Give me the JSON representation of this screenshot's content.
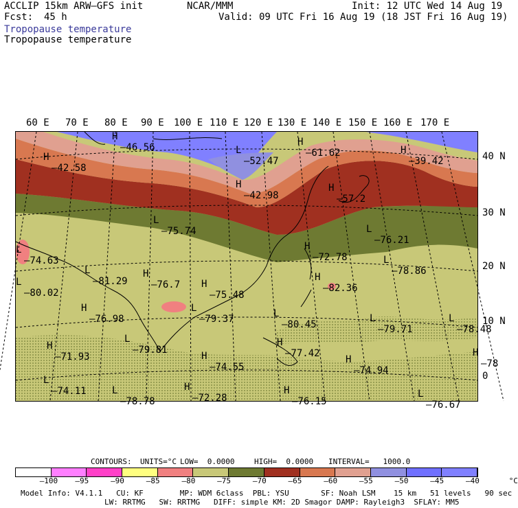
{
  "header": {
    "model": "ACCLIP 15km ARW–GFS init",
    "org": "NCAR/MMM",
    "init": "Init: 12 UTC Wed 14 Aug 19",
    "fcst_label": "Fcst:",
    "fcst_value": "45 h",
    "valid": "Valid: 09 UTC Fri 16 Aug 19 (18 JST Fri 16 Aug 19)",
    "field_title_1": "Tropopause temperature",
    "field_title_2": "Tropopause temperature",
    "title_color_1": "#3a3a9a"
  },
  "axes": {
    "lon_labels": [
      "60 E",
      "70 E",
      "80 E",
      "90 E",
      "100 E",
      "110 E",
      "120 E",
      "130 E",
      "140 E",
      "150 E",
      "160 E",
      "170 E"
    ],
    "lat_labels": [
      "40 N",
      "30 N",
      "20 N",
      "10 N",
      "0"
    ]
  },
  "map": {
    "lows": [
      {
        "mark": "L",
        "value": "–75.74"
      },
      {
        "mark": "L",
        "value": "–74.63"
      },
      {
        "mark": "L",
        "value": "–80.02"
      },
      {
        "mark": "L",
        "value": "–81.29"
      },
      {
        "mark": "L",
        "value": "–79.81"
      },
      {
        "mark": "L",
        "value": "–79.37"
      },
      {
        "mark": "L",
        "value": "–76.21"
      },
      {
        "mark": "L",
        "value": "–78.86"
      },
      {
        "mark": "L",
        "value": "–79.71"
      },
      {
        "mark": "L",
        "value": "–78.48"
      },
      {
        "mark": "L",
        "value": "–74.11"
      },
      {
        "mark": "L",
        "value": "–78.78"
      },
      {
        "mark": "L",
        "value": "–76.67"
      },
      {
        "mark": "L",
        "value": "–52.47"
      },
      {
        "mark": "L",
        "value": "–80.45"
      }
    ],
    "highs": [
      {
        "mark": "H",
        "value": "–46.56"
      },
      {
        "mark": "H",
        "value": "–42.58"
      },
      {
        "mark": "H",
        "value": "–42.98"
      },
      {
        "mark": "H",
        "value": "–61.62"
      },
      {
        "mark": "H",
        "value": "–39.42"
      },
      {
        "mark": "H",
        "value": "–57.2"
      },
      {
        "mark": "H",
        "value": "–72.78"
      },
      {
        "mark": "H",
        "value": "–82.36"
      },
      {
        "mark": "H",
        "value": "–76.7"
      },
      {
        "mark": "H",
        "value": "–75.48"
      },
      {
        "mark": "H",
        "value": "–76.98"
      },
      {
        "mark": "H",
        "value": "–71.93"
      },
      {
        "mark": "H",
        "value": "–74.55"
      },
      {
        "mark": "H",
        "value": "–77.42"
      },
      {
        "mark": "H",
        "value": "–74.94"
      },
      {
        "mark": "H",
        "value": "–78"
      },
      {
        "mark": "H",
        "value": "–72.28"
      },
      {
        "mark": "H",
        "value": "–76.15"
      }
    ]
  },
  "contours": {
    "label": "CONTOURS:",
    "units": "UNITS=°C",
    "low": "LOW=  0.0000",
    "high": "HIGH=  0.0000",
    "interval": "INTERVAL=   1000.0"
  },
  "colorbar": {
    "ticks": [
      "–100",
      "–95",
      "–90",
      "–85",
      "–80",
      "–75",
      "–70",
      "–65",
      "–60",
      "–55",
      "–50",
      "–45",
      "–40",
      "°C"
    ],
    "colors": [
      "#ffffff",
      "#ff7fff",
      "#ff40c8",
      "#ffff80",
      "#f08080",
      "#c8c878",
      "#6e7a32",
      "#a03020",
      "#d87850",
      "#e0a090",
      "#9090e0",
      "#7070ff",
      "#8080ff"
    ]
  },
  "footer": {
    "line1": "Model Info: V4.1.1   CU: KF        MP: WDM 6class  PBL: YSU       SF: Noah LSM    15 km   51 levels   90 sec",
    "line2": "LW: RRTMG   SW: RRTMG   DIFF: simple KM: 2D Smagor DAMP: Rayleigh3  SFLAY: MM5"
  }
}
